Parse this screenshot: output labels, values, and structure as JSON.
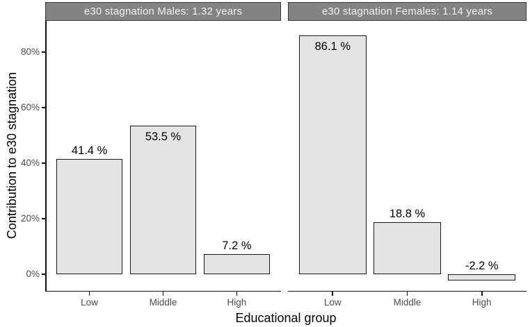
{
  "chart_data": {
    "type": "bar",
    "title": "",
    "xlabel": "Educational group",
    "ylabel": "Contribution to e30 stagnation",
    "y_ticks": [
      {
        "label": "0%",
        "value": 0
      },
      {
        "label": "20%",
        "value": 20
      },
      {
        "label": "40%",
        "value": 40
      },
      {
        "label": "60%",
        "value": 60
      },
      {
        "label": "80%",
        "value": 80
      }
    ],
    "ylim": [
      -5.9,
      91.25
    ],
    "grid": "off",
    "legend": "none",
    "facets": [
      {
        "strip": "e30 stagnation Males: 1.32 years",
        "categories": [
          "Low",
          "Middle",
          "High"
        ],
        "values": [
          41.4,
          53.5,
          7.2
        ],
        "bar_labels": [
          "41.4 %",
          "53.5 %",
          "7.2 %"
        ],
        "label_position": [
          "above",
          "inside",
          "above"
        ]
      },
      {
        "strip": "e30 stagnation Females: 1.14 years",
        "categories": [
          "Low",
          "Middle",
          "High"
        ],
        "values": [
          86.1,
          18.8,
          -2.2
        ],
        "bar_labels": [
          "86.1 %",
          "18.8 %",
          "-2.2 %"
        ],
        "label_position": [
          "inside",
          "above",
          "above"
        ]
      }
    ],
    "style": {
      "bar_fill": "#e4e4e4",
      "bar_border": "#1a1a1a",
      "strip_fill": "#838383",
      "strip_text_color": "#f2f2f2",
      "axis_line_color": "#111111",
      "tick_label_color": "#4d4d4d"
    }
  }
}
